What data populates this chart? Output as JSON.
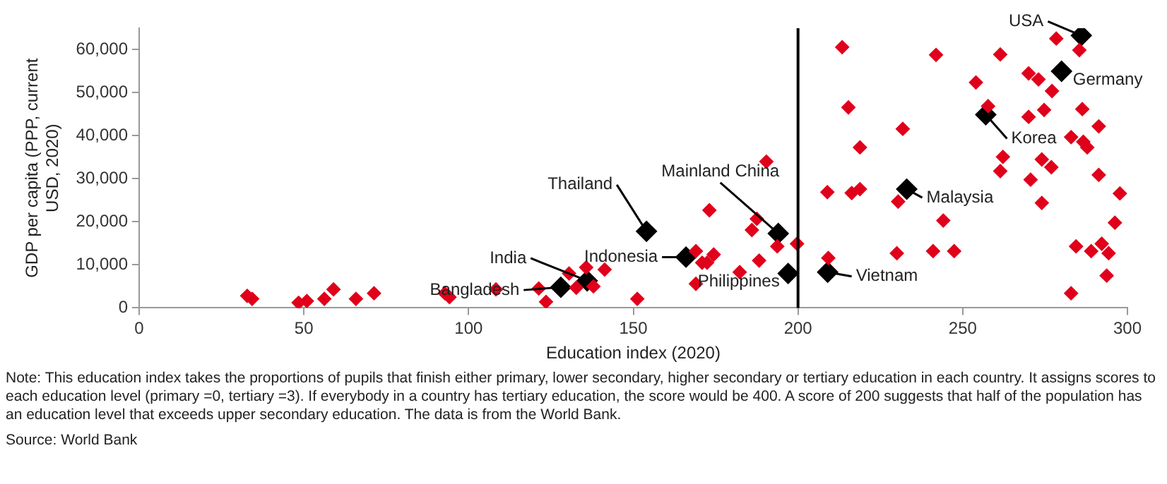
{
  "chart_data": {
    "type": "scatter",
    "xlabel": "Education index (2020)",
    "ylabel": "GDP per capita (PPP, current USD, 2020)",
    "xlim": [
      0,
      300
    ],
    "xticks": [
      0,
      50,
      100,
      150,
      200,
      250,
      300
    ],
    "ylim": [
      0,
      65000
    ],
    "yticks": [
      0,
      {
        "value": 10000,
        "label": "10,000"
      },
      {
        "value": 20000,
        "label": "20,000"
      },
      {
        "value": 30000,
        "label": "30,000"
      },
      {
        "value": 40000,
        "label": "40,000"
      },
      {
        "value": 50000,
        "label": "50,000"
      },
      {
        "value": 60000,
        "label": "60,000"
      }
    ],
    "grid": false,
    "legend": false,
    "marker": "diamond",
    "ref_lines": [
      {
        "axis": "x",
        "value": 200,
        "color": "#000000"
      }
    ],
    "series": [
      {
        "color": "#e0001b",
        "x": [
          32.8,
          34.3,
          48.4,
          50.9,
          56.2,
          59,
          65.8,
          71.3,
          92.8,
          94.2,
          108.3,
          121.3,
          123.5,
          130.5,
          132.7,
          135.7,
          137.9,
          141.3,
          151.2,
          169,
          169,
          170.9,
          172.4,
          174.4,
          173.1,
          182.3,
          188.2,
          186,
          187.5,
          190.4,
          193.7,
          199.7,
          209.2,
          208.9,
          216.3,
          218.8,
          213.4,
          215.3,
          218.8,
          231.8,
          230.4,
          230,
          241,
          247.4,
          244.1,
          241.9,
          254,
          257.7,
          261.4,
          262.2,
          261.4,
          270.6,
          270,
          270,
          273,
          274.7,
          277.1,
          278.4,
          285.4,
          274,
          276.9,
          282.9,
          286.6,
          287.8,
          286.3,
          291.3,
          291.3,
          274,
          297.7,
          296.2,
          284.4,
          289,
          292.2,
          294.3,
          293.7,
          282.9
        ],
        "values": [
          2800,
          2100,
          1200,
          1600,
          2100,
          4300,
          2100,
          3400,
          3400,
          2500,
          4300,
          4500,
          1400,
          8000,
          4700,
          9400,
          5000,
          8900,
          2100,
          13200,
          5600,
          10500,
          10500,
          12400,
          22700,
          8300,
          11000,
          18100,
          20700,
          34000,
          14300,
          14900,
          11600,
          26900,
          26700,
          27600,
          60600,
          46600,
          37300,
          41600,
          24700,
          12700,
          13200,
          13200,
          20300,
          58800,
          52400,
          46900,
          58900,
          35100,
          31800,
          29800,
          44400,
          54500,
          53100,
          46000,
          50400,
          62600,
          59900,
          34500,
          32700,
          39700,
          38600,
          37300,
          46200,
          42200,
          30900,
          24400,
          26600,
          19800,
          14300,
          13200,
          14900,
          12700,
          7500,
          3400
        ]
      },
      {
        "color": "#000000",
        "x": [
          286,
          280,
          257,
          233,
          209,
          197,
          194,
          154,
          166,
          136,
          128
        ],
        "values": [
          63300,
          55000,
          44900,
          27600,
          8300,
          8000,
          17300,
          17800,
          11800,
          6300,
          4800
        ]
      }
    ],
    "annotations": [
      {
        "text": "USA",
        "x": 286,
        "y": 63300
      },
      {
        "text": "Germany",
        "x": 280,
        "y": 55000
      },
      {
        "text": "Korea",
        "x": 257,
        "y": 44900
      },
      {
        "text": "Malaysia",
        "x": 233,
        "y": 27600
      },
      {
        "text": "Vietnam",
        "x": 209,
        "y": 8300
      },
      {
        "text": "Philippines",
        "x": 197,
        "y": 8000
      },
      {
        "text": "Mainland China",
        "x": 194,
        "y": 17300
      },
      {
        "text": "Thailand",
        "x": 154,
        "y": 17800
      },
      {
        "text": "Indonesia",
        "x": 166,
        "y": 11800
      },
      {
        "text": "India",
        "x": 136,
        "y": 6300
      },
      {
        "text": "Bangladesh",
        "x": 128,
        "y": 4800
      },
      "Note: This education index takes the proportions of pupils that finish either primary, lower secondary, higher secondary or tertiary education in each country. It assigns scores to each education level (primary =0, tertiary =3). If everybody in a country has tertiary education, the score would be 400. A score of 200 suggests that half of the population has an education level that exceeds upper secondary education. The data is from the World Bank.",
      "Source: World Bank"
    ]
  }
}
